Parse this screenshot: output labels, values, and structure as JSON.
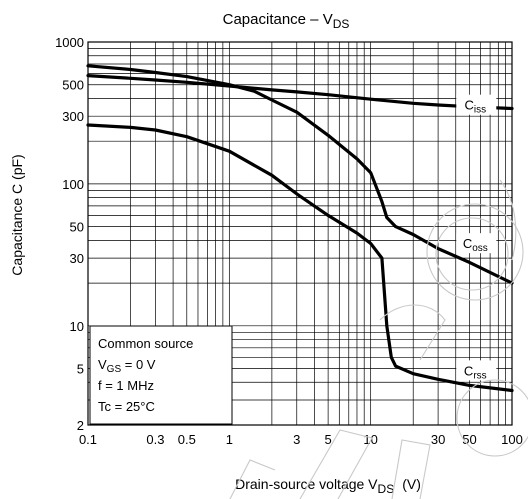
{
  "chart_data": {
    "type": "line",
    "title_main": "Capacitance – V",
    "title_sub": "DS",
    "xlabel_main": "Drain-source voltage   V",
    "xlabel_sub": "DS",
    "xlabel_unit": "(V)",
    "ylabel": "Capacitance   C   (pF)",
    "x_scale": "log",
    "y_scale": "log",
    "xlim": [
      0.1,
      100
    ],
    "ylim": [
      2,
      1000
    ],
    "grid": true,
    "x_ticks": [
      {
        "value": 0.1,
        "label": "0.1"
      },
      {
        "value": 0.3,
        "label": "0.3"
      },
      {
        "value": 0.5,
        "label": "0.5"
      },
      {
        "value": 1,
        "label": "1"
      },
      {
        "value": 3,
        "label": "3"
      },
      {
        "value": 5,
        "label": "5"
      },
      {
        "value": 10,
        "label": "10"
      },
      {
        "value": 30,
        "label": "30"
      },
      {
        "value": 50,
        "label": "50"
      },
      {
        "value": 100,
        "label": "100"
      }
    ],
    "y_ticks": [
      {
        "value": 2,
        "label": "2"
      },
      {
        "value": 5,
        "label": "5"
      },
      {
        "value": 10,
        "label": "10"
      },
      {
        "value": 30,
        "label": "30"
      },
      {
        "value": 50,
        "label": "50"
      },
      {
        "value": 100,
        "label": "100"
      },
      {
        "value": 300,
        "label": "300"
      },
      {
        "value": 500,
        "label": "500"
      },
      {
        "value": 1000,
        "label": "1000"
      }
    ],
    "series": [
      {
        "name": "Ciss",
        "label_main": "C",
        "label_sub": "iss",
        "label_at": {
          "x": 55,
          "y": 350
        },
        "x": [
          0.1,
          0.2,
          0.3,
          0.5,
          1,
          2,
          3,
          5,
          10,
          20,
          30,
          50,
          100
        ],
        "y": [
          580,
          555,
          540,
          520,
          490,
          460,
          445,
          425,
          395,
          370,
          360,
          350,
          340
        ]
      },
      {
        "name": "Coss",
        "label_main": "C",
        "label_sub": "oss",
        "label_at": {
          "x": 55,
          "y": 37
        },
        "x": [
          0.1,
          0.2,
          0.3,
          0.5,
          1,
          1.5,
          2,
          3,
          5,
          8,
          10,
          12,
          13,
          15,
          20,
          30,
          50,
          100
        ],
        "y": [
          680,
          640,
          610,
          570,
          500,
          450,
          390,
          320,
          220,
          150,
          120,
          75,
          58,
          50,
          44,
          35,
          28,
          20
        ]
      },
      {
        "name": "Crss",
        "label_main": "C",
        "label_sub": "rss",
        "label_at": {
          "x": 55,
          "y": 4.7
        },
        "x": [
          0.1,
          0.2,
          0.3,
          0.5,
          1,
          2,
          3,
          5,
          8,
          10,
          12,
          13,
          14,
          15,
          20,
          30,
          50,
          100
        ],
        "y": [
          260,
          250,
          240,
          215,
          170,
          115,
          85,
          60,
          45,
          38,
          30,
          10,
          6,
          5.2,
          4.6,
          4.2,
          3.8,
          3.5
        ]
      }
    ],
    "annotation_box": {
      "lines": [
        {
          "main": "Common source",
          "sub": "",
          "rest": ""
        },
        {
          "main": "V",
          "sub": "GS",
          "rest": " = 0 V"
        },
        {
          "main": "f = 1 MHz",
          "sub": "",
          "rest": ""
        },
        {
          "main": "Tc = 25°C",
          "sub": "",
          "rest": ""
        }
      ]
    }
  }
}
